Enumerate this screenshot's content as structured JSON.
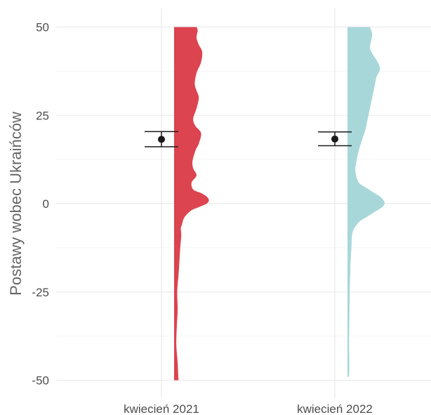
{
  "chart_data": {
    "type": "raincloud",
    "ylabel": "Postawy wobec Ukraińców",
    "xlabel": "",
    "ylim": [
      -52,
      52
    ],
    "yticks": [
      50,
      25,
      0,
      -25,
      -50
    ],
    "grid": true,
    "categories": [
      "kwiecień 2021",
      "kwiecień 2022"
    ],
    "groups": [
      {
        "category": "kwiecień 2021",
        "color": "#DC4450",
        "mean": 18.2,
        "ci": [
          16.1,
          20.4
        ],
        "density": {
          "y": [
            50,
            49,
            47,
            45,
            43,
            40,
            37,
            34,
            32,
            30,
            27,
            24,
            22,
            20,
            17,
            15,
            12,
            10,
            8,
            6,
            4,
            3,
            2,
            1,
            0,
            -1,
            -2,
            -4,
            -6,
            -7,
            -9,
            -12,
            -16,
            -20,
            -25,
            -30,
            -35,
            -40,
            -45,
            -48,
            -50
          ],
          "d": [
            1.0,
            1.05,
            1.0,
            1.1,
            1.25,
            1.2,
            1.0,
            0.92,
            1.0,
            1.1,
            1.0,
            0.85,
            0.95,
            1.2,
            1.1,
            0.95,
            0.82,
            0.85,
            1.0,
            0.78,
            0.85,
            1.2,
            1.45,
            1.55,
            1.45,
            1.1,
            0.75,
            0.45,
            0.35,
            0.3,
            0.32,
            0.28,
            0.24,
            0.2,
            0.14,
            0.16,
            0.12,
            0.1,
            0.16,
            0.18,
            0.2
          ]
        }
      },
      {
        "category": "kwiecień 2022",
        "color": "#A8D7DA",
        "mean": 18.3,
        "ci": [
          16.4,
          20.3
        ],
        "density": {
          "y": [
            50,
            48,
            46,
            44,
            42,
            40,
            38,
            36,
            33,
            30,
            27,
            24,
            21,
            18,
            15,
            12,
            10,
            8,
            6,
            5,
            4,
            3,
            2,
            1,
            0,
            -1,
            -2,
            -3,
            -4,
            -5,
            -7,
            -9,
            -12,
            -16,
            -20,
            -25,
            -30,
            -35,
            -40,
            -44,
            -47,
            -49
          ],
          "d": [
            1.0,
            1.1,
            1.05,
            1.0,
            1.15,
            1.35,
            1.45,
            1.3,
            1.2,
            1.1,
            1.0,
            0.9,
            0.8,
            0.65,
            0.5,
            0.4,
            0.35,
            0.38,
            0.5,
            0.7,
            0.95,
            1.2,
            1.45,
            1.6,
            1.65,
            1.55,
            1.3,
            1.05,
            0.8,
            0.55,
            0.3,
            0.2,
            0.18,
            0.14,
            0.12,
            0.1,
            0.09,
            0.08,
            0.07,
            0.08,
            0.08,
            0.07
          ]
        }
      }
    ]
  }
}
